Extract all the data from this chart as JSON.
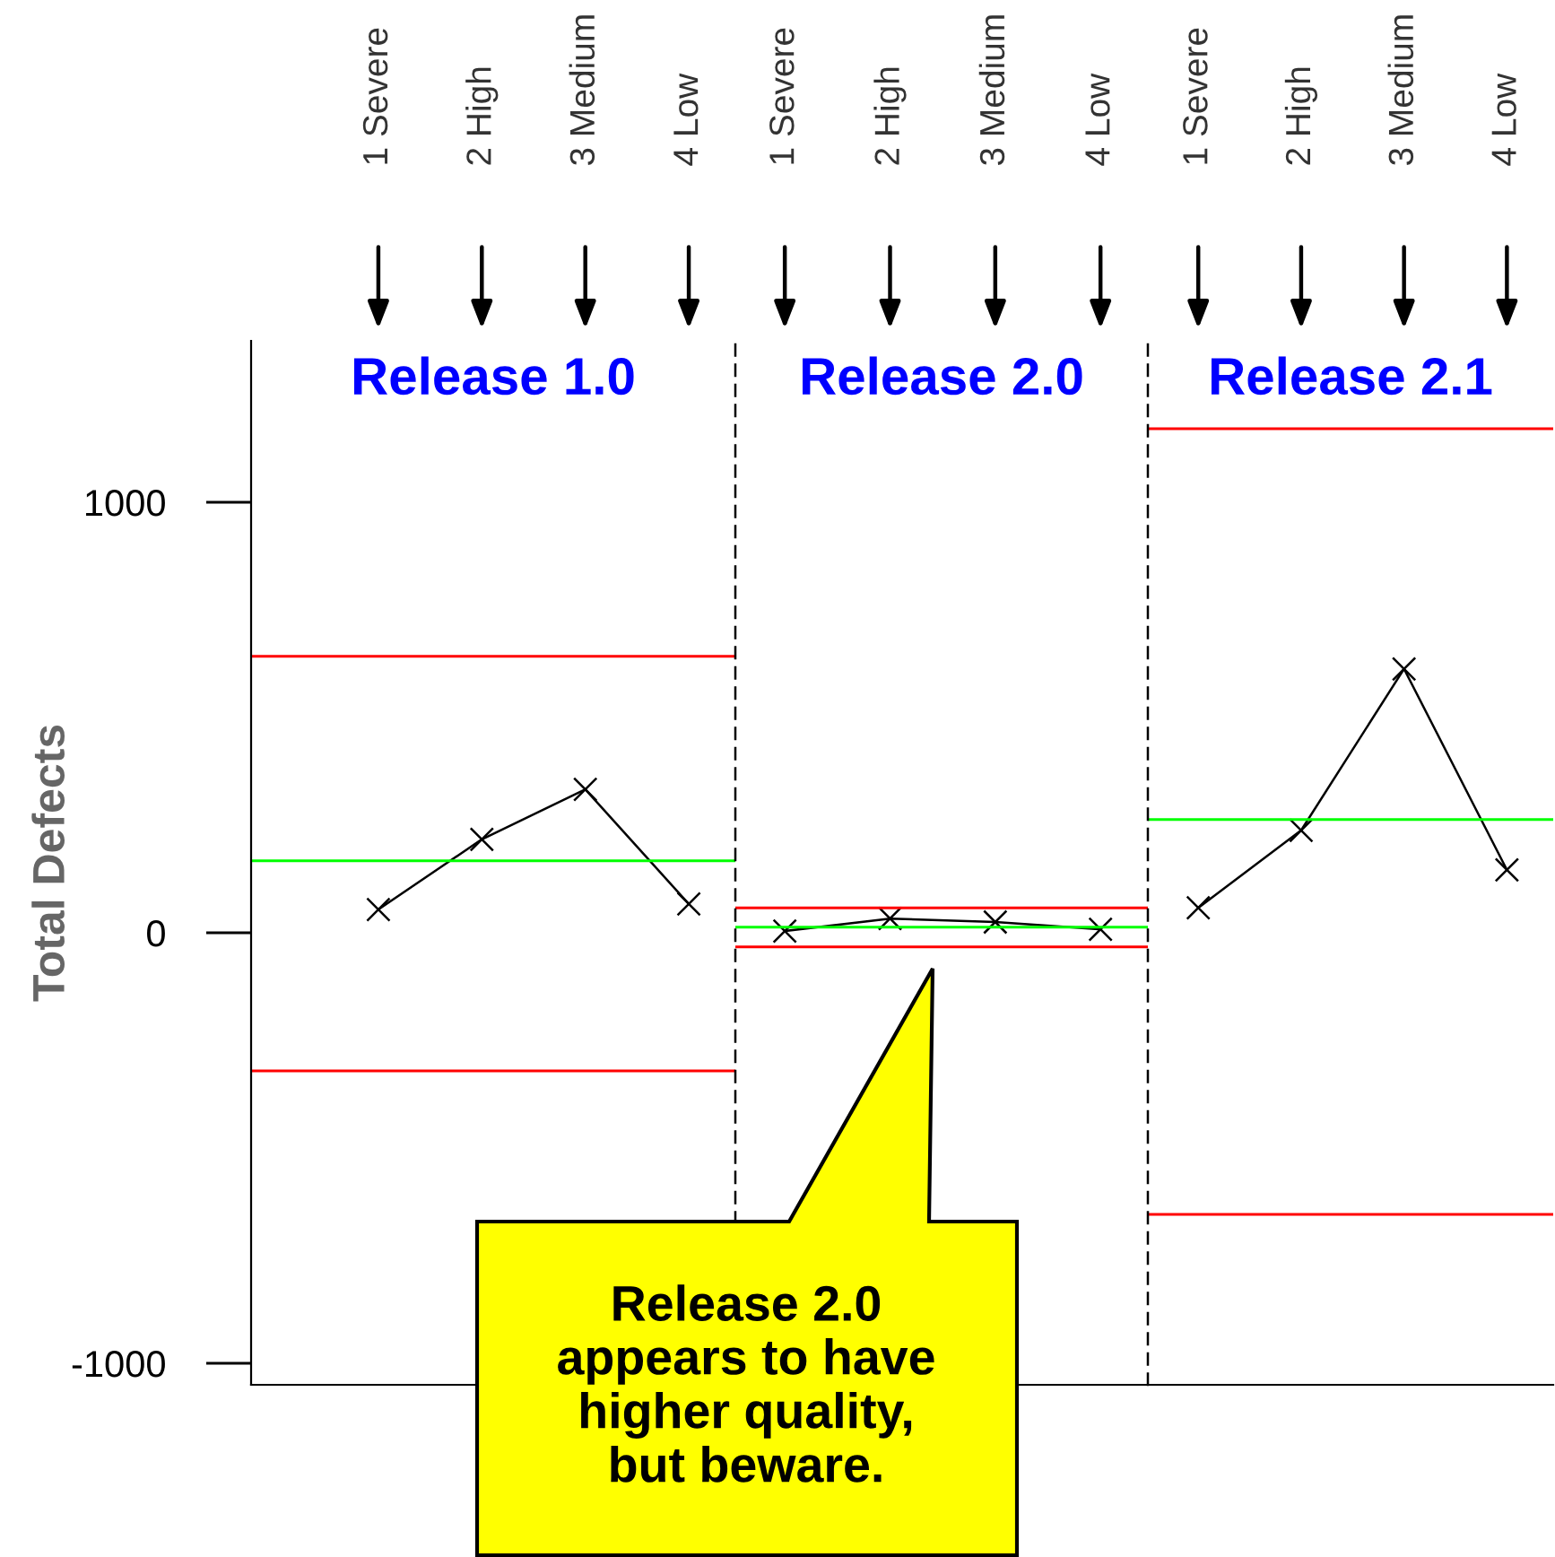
{
  "chart_data": [
    {
      "type": "line",
      "title": "Release 1.0",
      "ylabel": "Total Defects",
      "categories": [
        "1 Severe",
        "2 High",
        "3 Medium",
        "4 Low"
      ],
      "series": [
        {
          "color": "#000000",
          "values": [
            54,
            217,
            333,
            67
          ]
        }
      ],
      "marker": "cross",
      "ylim": [
        -1050,
        1375
      ],
      "yticks": [
        -1000,
        0,
        1000
      ],
      "grid": false,
      "legend": false,
      "ref_lines": [
        {
          "axis": "y",
          "value": 642,
          "color": "#ff0000"
        },
        {
          "axis": "y",
          "value": 167,
          "color": "#00ff00"
        },
        {
          "axis": "y",
          "value": -321,
          "color": "#ff0000"
        }
      ]
    },
    {
      "type": "line",
      "title": "Release 2.0",
      "categories": [
        "1 Severe",
        "2 High",
        "3 Medium",
        "4 Low"
      ],
      "series": [
        {
          "color": "#000000",
          "values": [
            4,
            33,
            25,
            8
          ]
        }
      ],
      "marker": "cross",
      "ylim": [
        -1050,
        1375
      ],
      "tick_labels": "x",
      "grid": false,
      "legend": false,
      "ref_lines": [
        {
          "axis": "y",
          "value": 58,
          "color": "#ff0000"
        },
        {
          "axis": "y",
          "value": 13,
          "color": "#00ff00"
        },
        {
          "axis": "y",
          "value": -33,
          "color": "#ff0000"
        }
      ],
      "annotations": [
        "Release 2.0\nappears to have\nhigher quality,\nbut beware."
      ]
    },
    {
      "type": "line",
      "title": "Release 2.1",
      "categories": [
        "1 Severe",
        "2 High",
        "3 Medium",
        "4 Low"
      ],
      "series": [
        {
          "color": "#000000",
          "values": [
            58,
            238,
            613,
            146
          ]
        }
      ],
      "marker": "cross",
      "ylim": [
        -1050,
        1375
      ],
      "tick_labels": "x",
      "grid": false,
      "legend": false,
      "ref_lines": [
        {
          "axis": "y",
          "value": 1171,
          "color": "#ff0000"
        },
        {
          "axis": "y",
          "value": 263,
          "color": "#00ff00"
        },
        {
          "axis": "y",
          "value": -654,
          "color": "#ff0000"
        }
      ]
    }
  ]
}
